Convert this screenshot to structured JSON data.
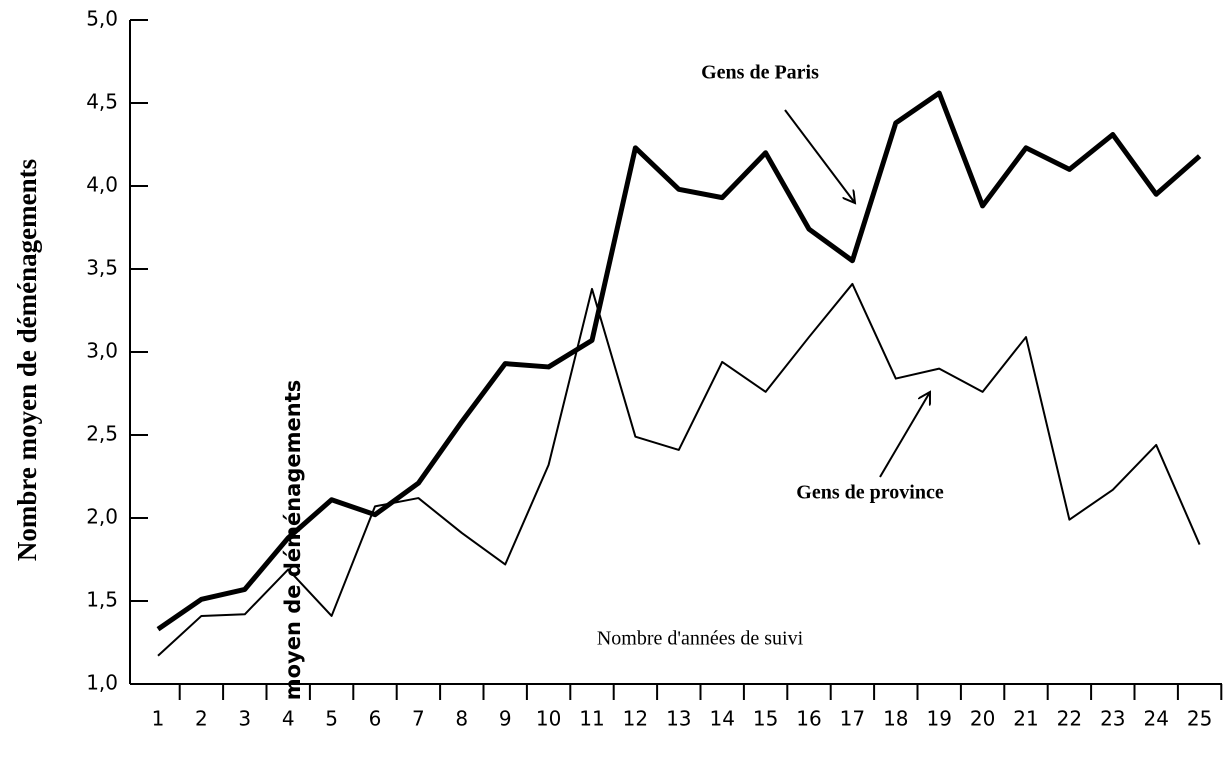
{
  "chart_data": {
    "type": "line",
    "y_label": "Nombre moyen de déménagements",
    "overlay_text": "moyen de déménagements",
    "annotations": [
      "Gens de Paris",
      "Gens de province",
      "Nombre d'années de suivi"
    ],
    "categories": [
      "1",
      "2",
      "3",
      "4",
      "5",
      "6",
      "7",
      "8",
      "9",
      "10",
      "11",
      "12",
      "13",
      "14",
      "15",
      "16",
      "17",
      "18",
      "19",
      "20",
      "21",
      "22",
      "23",
      "24",
      "25"
    ],
    "series": [
      {
        "name": "Gens de Paris",
        "color": "#000000",
        "values": [
          1.33,
          1.51,
          1.57,
          1.88,
          2.11,
          2.02,
          2.21,
          2.58,
          2.93,
          2.91,
          3.07,
          4.23,
          3.98,
          3.93,
          4.2,
          3.74,
          3.55,
          4.38,
          4.56,
          3.88,
          4.23,
          4.1,
          4.31,
          3.95,
          4.18
        ]
      },
      {
        "name": "Gens de province",
        "color": "#000000",
        "values": [
          1.17,
          1.41,
          1.42,
          1.69,
          1.41,
          2.07,
          2.12,
          1.91,
          1.72,
          2.32,
          3.38,
          2.49,
          2.41,
          2.94,
          2.76,
          3.09,
          3.41,
          2.84,
          2.9,
          2.76,
          3.09,
          1.99,
          2.17,
          2.44,
          1.84
        ]
      }
    ],
    "ylim": [
      1.0,
      5.0
    ],
    "yticks": [
      {
        "value": 1.0,
        "label": "1,0"
      },
      {
        "value": 1.5,
        "label": "1,5"
      },
      {
        "value": 2.0,
        "label": "2,0"
      },
      {
        "value": 2.5,
        "label": "2,5"
      },
      {
        "value": 3.0,
        "label": "3,0"
      },
      {
        "value": 3.5,
        "label": "3,5"
      },
      {
        "value": 4.0,
        "label": "4,0"
      },
      {
        "value": 4.5,
        "label": "4,5"
      },
      {
        "value": 5.0,
        "label": "5,0"
      }
    ],
    "grid": false
  }
}
